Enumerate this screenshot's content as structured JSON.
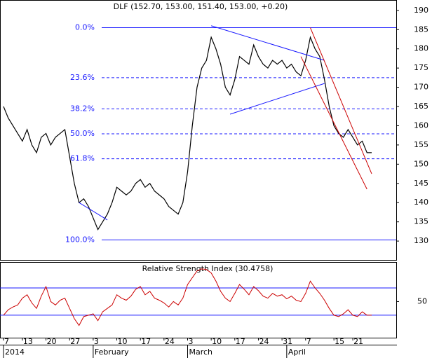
{
  "chart_data": [
    {
      "type": "line",
      "title": "DLF (152.70, 153.00, 151.40, 153.00, +0.20)",
      "categories": [
        "2014-01-07",
        "2014-01-08",
        "2014-01-09",
        "2014-01-10",
        "2014-01-13",
        "2014-01-14",
        "2014-01-15",
        "2014-01-16",
        "2014-01-17",
        "2014-01-20",
        "2014-01-21",
        "2014-01-22",
        "2014-01-23",
        "2014-01-24",
        "2014-01-27",
        "2014-01-28",
        "2014-01-29",
        "2014-01-30",
        "2014-01-31",
        "2014-02-03",
        "2014-02-04",
        "2014-02-05",
        "2014-02-06",
        "2014-02-07",
        "2014-02-10",
        "2014-02-11",
        "2014-02-12",
        "2014-02-13",
        "2014-02-14",
        "2014-02-17",
        "2014-02-18",
        "2014-02-19",
        "2014-02-20",
        "2014-02-21",
        "2014-02-24",
        "2014-02-25",
        "2014-02-26",
        "2014-02-27",
        "2014-02-28",
        "2014-03-03",
        "2014-03-04",
        "2014-03-05",
        "2014-03-06",
        "2014-03-07",
        "2014-03-10",
        "2014-03-11",
        "2014-03-12",
        "2014-03-13",
        "2014-03-14",
        "2014-03-17",
        "2014-03-18",
        "2014-03-19",
        "2014-03-20",
        "2014-03-21",
        "2014-03-24",
        "2014-03-25",
        "2014-03-26",
        "2014-03-27",
        "2014-03-28",
        "2014-03-31",
        "2014-04-01",
        "2014-04-02",
        "2014-04-03",
        "2014-04-04",
        "2014-04-07",
        "2014-04-08",
        "2014-04-09",
        "2014-04-10",
        "2014-04-11",
        "2014-04-14",
        "2014-04-15",
        "2014-04-16",
        "2014-04-17",
        "2014-04-18",
        "2014-04-21",
        "2014-04-22",
        "2014-04-23",
        "2014-04-24",
        "2014-04-25"
      ],
      "series": [
        {
          "name": "DLF",
          "color": "#000000",
          "values": [
            165,
            162,
            160,
            158,
            156,
            159,
            155,
            153,
            157,
            158,
            155,
            157,
            158,
            159,
            152,
            145,
            140,
            141,
            139,
            136,
            133,
            135,
            137,
            140,
            144,
            143,
            142,
            143,
            145,
            146,
            144,
            145,
            143,
            142,
            141,
            139,
            138,
            137,
            140,
            148,
            160,
            170,
            175,
            177,
            183,
            180,
            176,
            170,
            168,
            172,
            178,
            177,
            176,
            181,
            178,
            176,
            175,
            177,
            176,
            177,
            175,
            176,
            174,
            173,
            177,
            183,
            180,
            178,
            172,
            165,
            160,
            158,
            157,
            159,
            157,
            155,
            156,
            153,
            153
          ]
        }
      ],
      "ylim": [
        125.1,
        192.7
      ],
      "yticks": [
        130,
        135,
        140,
        145,
        150,
        155,
        160,
        165,
        170,
        175,
        180,
        185,
        190
      ],
      "xticks": [
        {
          "value": "2014-01-07",
          "label": "7"
        },
        {
          "value": "2014-01-13",
          "label": "13"
        },
        {
          "value": "2014-01-20",
          "label": "20"
        },
        {
          "value": "2014-01-27",
          "label": "27"
        },
        {
          "value": "2014-02-03",
          "label": "3"
        },
        {
          "value": "2014-02-10",
          "label": "10"
        },
        {
          "value": "2014-02-17",
          "label": "17"
        },
        {
          "value": "2014-02-24",
          "label": "24"
        },
        {
          "value": "2014-03-03",
          "label": "3"
        },
        {
          "value": "2014-03-10",
          "label": "10"
        },
        {
          "value": "2014-03-17",
          "label": "17"
        },
        {
          "value": "2014-03-24",
          "label": "24"
        },
        {
          "value": "2014-03-31",
          "label": "31"
        },
        {
          "value": "2014-04-07",
          "label": "7"
        },
        {
          "value": "2014-04-15",
          "label": "15"
        },
        {
          "value": "2014-04-21",
          "label": "21"
        }
      ],
      "months": [
        {
          "value": "2014-01-07",
          "label": "2014"
        },
        {
          "value": "2014-02-03",
          "label": "February"
        },
        {
          "value": "2014-03-03",
          "label": "March"
        },
        {
          "value": "2014-04-01",
          "label": "April"
        }
      ],
      "fibonacci": [
        {
          "value": 185.5,
          "label": "0.0%"
        },
        {
          "value": 172.5,
          "label": "23.6%"
        },
        {
          "value": 164.4,
          "label": "38.2%"
        },
        {
          "value": 157.9,
          "label": "50.0%"
        },
        {
          "value": 151.4,
          "label": "61.8%"
        },
        {
          "value": 130.3,
          "label": "100.0%"
        }
      ],
      "trendlines": [
        {
          "color": "#1a1aff",
          "points": [
            [
              "2014-03-10",
              186
            ],
            [
              "2014-04-11",
              177
            ]
          ]
        },
        {
          "color": "#1a1aff",
          "points": [
            [
              "2014-03-14",
              163
            ],
            [
              "2014-04-11",
              171
            ]
          ]
        },
        {
          "color": "#1a1aff",
          "points": [
            [
              "2014-01-29",
              140
            ],
            [
              "2014-02-06",
              135.5
            ]
          ]
        },
        {
          "color": "#cc0000",
          "points": [
            [
              "2014-04-08",
              185.5
            ],
            [
              "2014-04-25",
              147.5
            ]
          ]
        },
        {
          "color": "#cc0000",
          "points": [
            [
              "2014-04-04",
              178
            ],
            [
              "2014-04-24",
              143.5
            ]
          ]
        }
      ]
    },
    {
      "type": "line",
      "title": "Relative Strength Index (30.4758)",
      "series": [
        {
          "name": "RSI",
          "color": "#cc0000",
          "values": [
            30,
            38,
            42,
            45,
            55,
            60,
            48,
            40,
            58,
            72,
            50,
            45,
            52,
            55,
            40,
            25,
            15,
            28,
            30,
            32,
            22,
            35,
            40,
            45,
            60,
            55,
            52,
            58,
            68,
            72,
            60,
            65,
            55,
            52,
            48,
            42,
            50,
            45,
            55,
            75,
            85,
            95,
            98,
            97,
            92,
            80,
            65,
            55,
            50,
            62,
            75,
            68,
            60,
            72,
            66,
            58,
            55,
            62,
            58,
            60,
            54,
            58,
            52,
            50,
            62,
            80,
            70,
            62,
            52,
            40,
            30,
            28,
            32,
            38,
            30,
            28,
            35,
            30,
            30
          ]
        }
      ],
      "ylim": [
        -3,
        107
      ],
      "yticks": [
        50
      ],
      "levels": [
        70,
        30
      ]
    }
  ]
}
